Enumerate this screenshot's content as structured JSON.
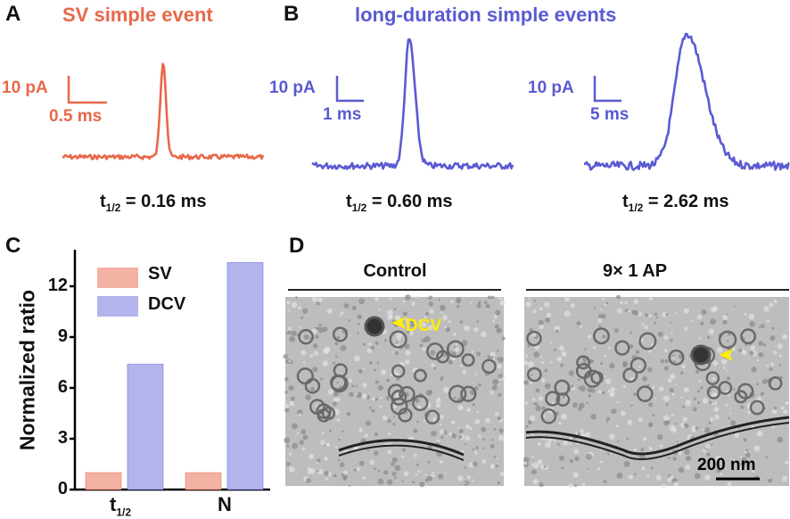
{
  "colors": {
    "sv": "#e8684a",
    "dcv": "#5a5ad2",
    "sv_fill": "#f4b2a4",
    "dcv_fill": "#b4b4ec",
    "arrow": "#ffee00"
  },
  "panel_a": {
    "label": "A",
    "title": "SV simple event",
    "scale_y": "10 pA",
    "scale_x": "0.5 ms",
    "t_half_prefix": "t",
    "t_half_sub": "1/2",
    "t_half_value": " = 0.16 ms"
  },
  "panel_b": {
    "label": "B",
    "title": "long-duration simple events",
    "traces": [
      {
        "scale_y": "10 pA",
        "scale_x": "1 ms",
        "t_half_prefix": "t",
        "t_half_sub": "1/2",
        "t_half_value": " = 0.60 ms"
      },
      {
        "scale_y": "10 pA",
        "scale_x": "5 ms",
        "t_half_prefix": "t",
        "t_half_sub": "1/2",
        "t_half_value": " = 2.62 ms"
      }
    ]
  },
  "panel_c": {
    "label": "C"
  },
  "chart_data": {
    "type": "bar",
    "categories": [
      "t1/2",
      "N"
    ],
    "category_labels": [
      {
        "main": "t",
        "sub": "1/2"
      },
      {
        "main": "N",
        "sub": ""
      }
    ],
    "series": [
      {
        "name": "SV",
        "values": [
          1,
          1
        ]
      },
      {
        "name": "DCV",
        "values": [
          7.4,
          13.4
        ]
      }
    ],
    "ylabel": "Normalized ratio",
    "ylim": [
      0,
      14.2
    ],
    "yticks": [
      0,
      3,
      6,
      9,
      12
    ],
    "legend": "top-left",
    "grid": false
  },
  "panel_d": {
    "label": "D",
    "images": [
      {
        "title": "Control",
        "annotation": "DCV"
      },
      {
        "title": "9× 1 AP",
        "scale_bar": "200 nm"
      }
    ]
  }
}
